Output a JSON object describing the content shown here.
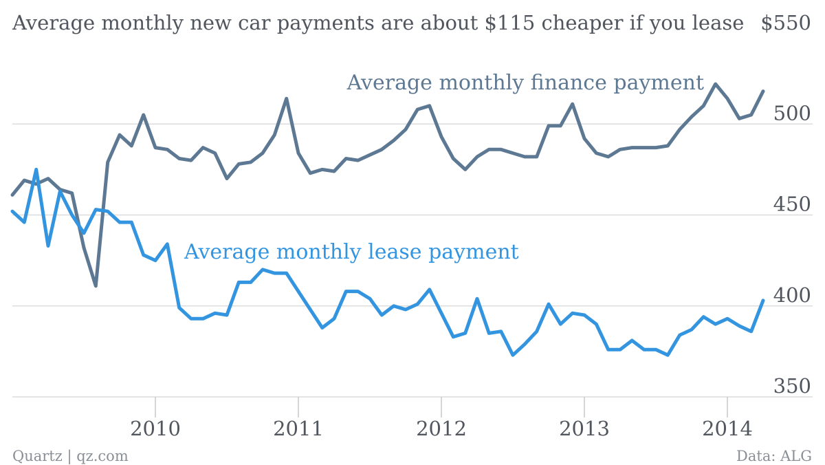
{
  "title": "Average monthly new car payments are about $115 cheaper if you lease",
  "footer": {
    "source_left": "Quartz | qz.com",
    "source_right": "Data: ALG"
  },
  "colors": {
    "finance": "#5d7893",
    "lease": "#3394e0",
    "grid": "#dcdcdc",
    "text": "#51565e"
  },
  "chart_data": {
    "type": "line",
    "title": "Average monthly new car payments are about $115 cheaper if you lease",
    "xlabel": "",
    "ylabel": "",
    "ylim": [
      350,
      550
    ],
    "y_ticks": [
      {
        "value": 550,
        "label": "$550"
      },
      {
        "value": 500,
        "label": "500"
      },
      {
        "value": 450,
        "label": "450"
      },
      {
        "value": 400,
        "label": "400"
      },
      {
        "value": 350,
        "label": "350"
      }
    ],
    "x_ticks": [
      {
        "value": "2010",
        "label": "2010"
      },
      {
        "value": "2011",
        "label": "2011"
      },
      {
        "value": "2012",
        "label": "2012"
      },
      {
        "value": "2013",
        "label": "2013"
      },
      {
        "value": "2014",
        "label": "2014"
      }
    ],
    "x_start": "2009-01",
    "x_end": "2014-04",
    "grid": true,
    "series": [
      {
        "name": "Average monthly finance payment",
        "color": "#5d7893",
        "x": [
          "2009-01",
          "2009-02",
          "2009-03",
          "2009-04",
          "2009-05",
          "2009-06",
          "2009-07",
          "2009-08",
          "2009-09",
          "2009-10",
          "2009-11",
          "2009-12",
          "2010-01",
          "2010-02",
          "2010-03",
          "2010-04",
          "2010-05",
          "2010-06",
          "2010-07",
          "2010-08",
          "2010-09",
          "2010-10",
          "2010-11",
          "2010-12",
          "2011-01",
          "2011-02",
          "2011-03",
          "2011-04",
          "2011-05",
          "2011-06",
          "2011-07",
          "2011-08",
          "2011-09",
          "2011-10",
          "2011-11",
          "2011-12",
          "2012-01",
          "2012-02",
          "2012-03",
          "2012-04",
          "2012-05",
          "2012-06",
          "2012-07",
          "2012-08",
          "2012-09",
          "2012-10",
          "2012-11",
          "2012-12",
          "2013-01",
          "2013-02",
          "2013-03",
          "2013-04",
          "2013-05",
          "2013-06",
          "2013-07",
          "2013-08",
          "2013-09",
          "2013-10",
          "2013-11",
          "2013-12",
          "2014-01",
          "2014-02",
          "2014-03",
          "2014-04"
        ],
        "values": [
          461,
          469,
          467,
          470,
          464,
          462,
          432,
          411,
          479,
          494,
          488,
          505,
          487,
          486,
          481,
          480,
          487,
          484,
          470,
          478,
          479,
          484,
          494,
          514,
          484,
          473,
          475,
          474,
          481,
          480,
          483,
          486,
          491,
          497,
          508,
          510,
          493,
          481,
          475,
          482,
          486,
          486,
          484,
          482,
          482,
          499,
          499,
          511,
          492,
          484,
          482,
          486,
          487,
          487,
          487,
          488,
          497,
          504,
          510,
          522,
          514,
          503,
          505,
          518
        ]
      },
      {
        "name": "Average monthly lease payment",
        "color": "#3394e0",
        "x": [
          "2009-01",
          "2009-02",
          "2009-03",
          "2009-04",
          "2009-05",
          "2009-06",
          "2009-07",
          "2009-08",
          "2009-09",
          "2009-10",
          "2009-11",
          "2009-12",
          "2010-01",
          "2010-02",
          "2010-03",
          "2010-04",
          "2010-05",
          "2010-06",
          "2010-07",
          "2010-08",
          "2010-09",
          "2010-10",
          "2010-11",
          "2010-12",
          "2011-01",
          "2011-02",
          "2011-03",
          "2011-04",
          "2011-05",
          "2011-06",
          "2011-07",
          "2011-08",
          "2011-09",
          "2011-10",
          "2011-11",
          "2011-12",
          "2012-01",
          "2012-02",
          "2012-03",
          "2012-04",
          "2012-05",
          "2012-06",
          "2012-07",
          "2012-08",
          "2012-09",
          "2012-10",
          "2012-11",
          "2012-12",
          "2013-01",
          "2013-02",
          "2013-03",
          "2013-04",
          "2013-05",
          "2013-06",
          "2013-07",
          "2013-08",
          "2013-09",
          "2013-10",
          "2013-11",
          "2013-12",
          "2014-01",
          "2014-02",
          "2014-03",
          "2014-04"
        ],
        "values": [
          452,
          446,
          475,
          433,
          463,
          450,
          440,
          453,
          452,
          446,
          446,
          428,
          425,
          434,
          399,
          393,
          393,
          396,
          395,
          413,
          413,
          420,
          418,
          418,
          408,
          398,
          388,
          393,
          408,
          408,
          404,
          395,
          400,
          398,
          401,
          409,
          396,
          383,
          385,
          404,
          385,
          386,
          373,
          379,
          386,
          401,
          390,
          396,
          395,
          390,
          376,
          376,
          381,
          376,
          376,
          373,
          384,
          387,
          394,
          390,
          393,
          389,
          386,
          403
        ]
      }
    ]
  }
}
